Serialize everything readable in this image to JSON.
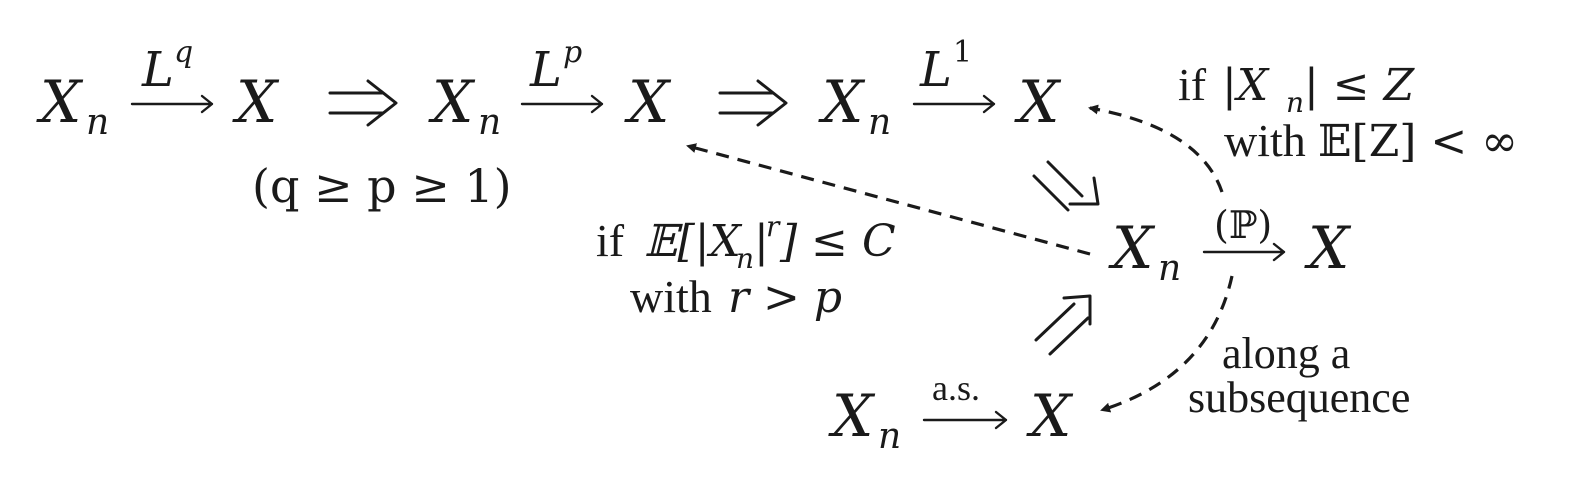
{
  "nodes": {
    "xn_lq": "X",
    "x_lq": "X",
    "xn_lp": "X",
    "x_lp": "X",
    "xn_l1": "X",
    "x_l1": "X",
    "xn_p": "X",
    "x_p": "X",
    "xn_as": "X",
    "x_as": "X",
    "subscript": "n"
  },
  "arrows": {
    "lq_label_base": "L",
    "lq_label_sup": "q",
    "lp_label_base": "L",
    "lp_label_sup": "p",
    "l1_label_base": "L",
    "l1_label_sup": "1",
    "prob_label": "(ℙ)",
    "as_label": "a.s."
  },
  "annotations": {
    "lq_condition": "(q ≥ p ≥ 1)",
    "ui_cond_if": "if",
    "ui_cond_expr": "𝔼[|X",
    "ui_cond_expr_sub": "n",
    "ui_cond_expr_end": "|",
    "ui_cond_r": "r",
    "ui_cond_tail": "] ≤ C",
    "ui_cond_with": "with",
    "ui_cond_r2": "r > p",
    "dom_cond_if": "if",
    "dom_cond_expr": "|X",
    "dom_cond_expr_sub": "n",
    "dom_cond_expr_tail": "| ≤ Z",
    "dom_cond_with": "with",
    "dom_cond_tail": "𝔼[Z] < ∞",
    "subseq_line1": "along a",
    "subseq_line2": "subsequence"
  }
}
